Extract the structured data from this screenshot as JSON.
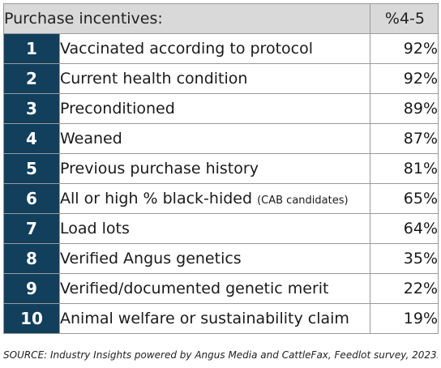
{
  "chart_data": {
    "type": "table",
    "columns": [
      "Purchase incentives:",
      "%4-5"
    ],
    "rows": [
      {
        "rank": "1",
        "label": "Vaccinated according to protocol",
        "note": "",
        "value": "92%"
      },
      {
        "rank": "2",
        "label": "Current health condition",
        "note": "",
        "value": "92%"
      },
      {
        "rank": "3",
        "label": "Preconditioned",
        "note": "",
        "value": "89%"
      },
      {
        "rank": "4",
        "label": "Weaned",
        "note": "",
        "value": "87%"
      },
      {
        "rank": "5",
        "label": "Previous purchase history",
        "note": "",
        "value": "81%"
      },
      {
        "rank": "6",
        "label": "All or high % black-hided",
        "note": "(CAB candidates)",
        "value": "65%"
      },
      {
        "rank": "7",
        "label": "Load lots",
        "note": "",
        "value": "64%"
      },
      {
        "rank": "8",
        "label": "Verified Angus genetics",
        "note": "",
        "value": "35%"
      },
      {
        "rank": "9",
        "label": "Verified/documented genetic merit",
        "note": "",
        "value": "22%"
      },
      {
        "rank": "10",
        "label": "Animal welfare or sustainability claim",
        "note": "",
        "value": "19%"
      }
    ]
  },
  "source": "SOURCE: Industry Insights powered by Angus Media and CattleFax, Feedlot survey, 2023.",
  "colors": {
    "rank_background": "#113f5c",
    "header_background": "#d9d9d9"
  }
}
